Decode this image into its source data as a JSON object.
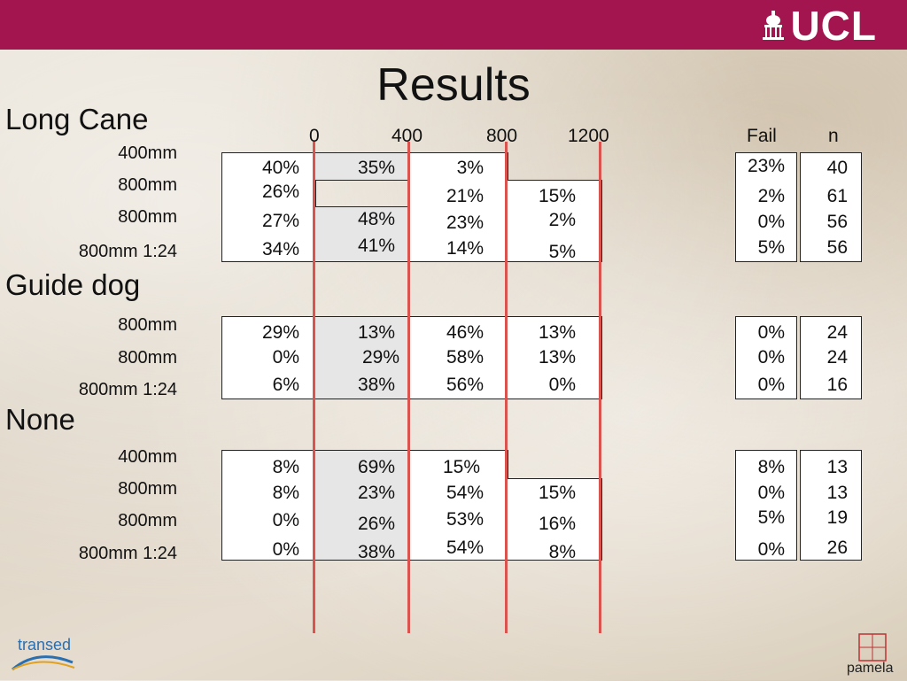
{
  "header": {
    "logo_text": "UCL"
  },
  "title": "Results",
  "axis_ticks": [
    "0",
    "400",
    "800",
    "1200"
  ],
  "col_fail": "Fail",
  "col_n": "n",
  "sections": [
    {
      "name": "Long Cane",
      "rows": [
        {
          "label": "400mm",
          "values": [
            "40%",
            "35%",
            "3%",
            ""
          ],
          "fail": "23%",
          "n": "40"
        },
        {
          "label": "800mm",
          "values": [
            "26%",
            "",
            "21%",
            "15%"
          ],
          "fail": "2%",
          "n": "61"
        },
        {
          "label": "800mm",
          "values": [
            "27%",
            "48%",
            "23%",
            "2%"
          ],
          "fail": "0%",
          "n": "56"
        },
        {
          "label": "800mm 1:24",
          "values": [
            "34%",
            "41%",
            "14%",
            "5%"
          ],
          "fail": "5%",
          "n": "56"
        }
      ]
    },
    {
      "name": "Guide dog",
      "rows": [
        {
          "label": "800mm",
          "values": [
            "29%",
            "13%",
            "46%",
            "13%"
          ],
          "fail": "0%",
          "n": "24"
        },
        {
          "label": "800mm",
          "values": [
            "0%",
            "29%",
            "58%",
            "13%"
          ],
          "fail": "0%",
          "n": "24"
        },
        {
          "label": "800mm 1:24",
          "values": [
            "6%",
            "38%",
            "56%",
            "0%"
          ],
          "fail": "0%",
          "n": "16"
        }
      ]
    },
    {
      "name": "None",
      "rows": [
        {
          "label": "400mm",
          "values": [
            "8%",
            "69%",
            "15%",
            ""
          ],
          "fail": "8%",
          "n": "13"
        },
        {
          "label": "800mm",
          "values": [
            "8%",
            "23%",
            "54%",
            "15%"
          ],
          "fail": "0%",
          "n": "13"
        },
        {
          "label": "800mm",
          "values": [
            "0%",
            "26%",
            "53%",
            "16%"
          ],
          "fail": "5%",
          "n": "19"
        },
        {
          "label": "800mm 1:24",
          "values": [
            "0%",
            "38%",
            "54%",
            "8%"
          ],
          "fail": "0%",
          "n": "26"
        }
      ]
    }
  ],
  "footer": {
    "left_logo_text": "transed",
    "right_logo_text": "pamela"
  },
  "colors": {
    "banner": "#a3154e",
    "red_line": "#d9534f",
    "gray_cell": "#e6e6e6"
  }
}
